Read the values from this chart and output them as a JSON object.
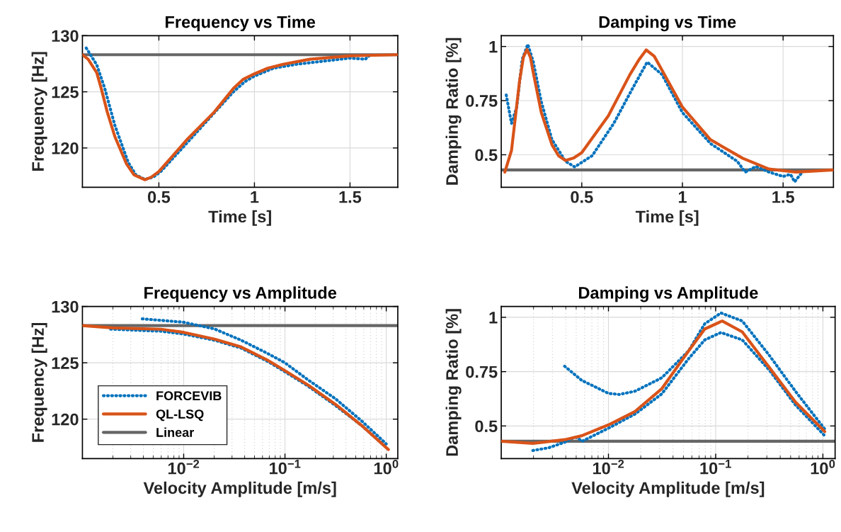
{
  "chart_data": [
    {
      "type": "line",
      "title": "Frequency vs Time",
      "xlabel": "Time [s]",
      "ylabel": "Frequency [Hz]",
      "xlim": [
        0.1,
        1.75
      ],
      "ylim": [
        116.5,
        130
      ],
      "xticks": [
        0.5,
        1,
        1.5
      ],
      "yticks": [
        120,
        125,
        130
      ],
      "grid": true,
      "legend": false,
      "series": [
        {
          "color": "#0072bd",
          "line_style": "dotted",
          "x": [
            0.12,
            0.175,
            0.217,
            0.27,
            0.34,
            0.38,
            0.427,
            0.47,
            0.51,
            0.65,
            0.89,
            0.95,
            1.0,
            1.1,
            1.22,
            1.5,
            1.58,
            1.6
          ],
          "values": [
            128.9,
            127.4,
            125.3,
            122,
            118.7,
            117.6,
            117.2,
            117.4,
            117.9,
            120.5,
            125,
            125.9,
            126.4,
            127.1,
            127.45,
            128.0,
            127.9,
            128.2
          ]
        },
        {
          "color": "#d95319",
          "line_style": "solid",
          "x": [
            0.1,
            0.13,
            0.175,
            0.2,
            0.23,
            0.27,
            0.33,
            0.37,
            0.427,
            0.46,
            0.5,
            0.65,
            0.79,
            0.89,
            0.94,
            1.0,
            1.07,
            1.15,
            1.29,
            1.5,
            1.75
          ],
          "values": [
            128.3,
            127.9,
            126.7,
            125.2,
            123.2,
            121,
            118.6,
            117.6,
            117.17,
            117.4,
            117.9,
            120.8,
            123.2,
            125.3,
            126.1,
            126.6,
            127.1,
            127.45,
            127.9,
            128.2,
            128.3
          ]
        },
        {
          "color": "#666666",
          "line_style": "solid",
          "x": [
            0.1,
            1.75
          ],
          "values": [
            128.3,
            128.3
          ]
        }
      ]
    },
    {
      "type": "line",
      "title": "Damping vs Time",
      "xlabel": "Time [s]",
      "ylabel": "Damping Ratio [%]",
      "xlim": [
        0.1,
        1.75
      ],
      "ylim": [
        0.35,
        1.05
      ],
      "xticks": [
        0.5,
        1,
        1.5
      ],
      "yticks": [
        0.5,
        0.75,
        1
      ],
      "grid": true,
      "legend": false,
      "series": [
        {
          "color": "#0072bd",
          "line_style": "dotted",
          "x": [
            0.125,
            0.151,
            0.177,
            0.204,
            0.232,
            0.259,
            0.299,
            0.352,
            0.419,
            0.465,
            0.552,
            0.659,
            0.752,
            0.825,
            0.899,
            1.0,
            1.139,
            1.272,
            1.312,
            1.365,
            1.43,
            1.5,
            1.537,
            1.557,
            1.592
          ],
          "values": [
            0.776,
            0.645,
            0.72,
            0.94,
            1.01,
            0.93,
            0.745,
            0.57,
            0.47,
            0.444,
            0.496,
            0.645,
            0.806,
            0.928,
            0.87,
            0.695,
            0.552,
            0.47,
            0.42,
            0.446,
            0.42,
            0.4,
            0.41,
            0.375,
            0.416
          ]
        },
        {
          "color": "#d95319",
          "line_style": "solid",
          "x": [
            0.118,
            0.151,
            0.191,
            0.21,
            0.228,
            0.245,
            0.259,
            0.299,
            0.352,
            0.385,
            0.419,
            0.46,
            0.5,
            0.632,
            0.739,
            0.785,
            0.82,
            0.86,
            0.899,
            1.0,
            1.139,
            1.299,
            1.43,
            1.565,
            1.75
          ],
          "values": [
            0.42,
            0.52,
            0.84,
            0.95,
            0.986,
            0.95,
            0.88,
            0.695,
            0.546,
            0.495,
            0.474,
            0.485,
            0.51,
            0.68,
            0.87,
            0.94,
            0.984,
            0.955,
            0.89,
            0.72,
            0.57,
            0.484,
            0.434,
            0.42,
            0.43
          ]
        },
        {
          "color": "#666666",
          "line_style": "solid",
          "x": [
            0.1,
            1.75
          ],
          "values": [
            0.43,
            0.43
          ]
        }
      ]
    },
    {
      "type": "line",
      "title": "Frequency vs Amplitude",
      "xlabel": "Velocity Amplitude [m/s]",
      "ylabel": "Frequency [Hz]",
      "log": "x",
      "xlim": [
        0.001,
        1.3
      ],
      "ylim": [
        116.5,
        130
      ],
      "xticks": [
        {
          "value": 0.01,
          "label": "10$^{−2}$"
        },
        {
          "value": 0.1,
          "label": "10$^{−1}$"
        },
        {
          "value": 1,
          "label": "10$^{0}$"
        }
      ],
      "yticks": [
        120,
        125,
        130
      ],
      "grid": true,
      "legend": "bottom left",
      "series": [
        {
          "name": "FORCEVIB",
          "color": "#0072bd",
          "line_style": "dotted",
          "x": [
            0.0039,
            0.01,
            0.0202,
            0.037,
            0.0683,
            0.1,
            0.171,
            0.316,
            0.578,
            1.0
          ],
          "values": [
            128.9,
            128.6,
            128,
            127,
            125.8,
            125,
            123.45,
            121.8,
            119.8,
            117.8
          ]
        },
        {
          "name": "QL-LSQ",
          "color": "#d95319",
          "line_style": "solid",
          "x": [
            0.001,
            0.002,
            0.00596,
            0.01,
            0.0202,
            0.037,
            0.0683,
            0.1,
            0.171,
            0.316,
            0.578,
            1.05
          ],
          "values": [
            128.3,
            128.1,
            127.98,
            127.7,
            127.1,
            126.4,
            125.2,
            124.3,
            123,
            121.3,
            119.4,
            117.3
          ]
        },
        {
          "name": "Linear",
          "color": "#666666",
          "line_style": "solid",
          "x": [
            0.001,
            1.3
          ],
          "values": [
            128.3,
            128.3
          ]
        },
        {
          "color": "#0072bd",
          "line_style": "dotted",
          "x": [
            0.0019,
            0.00596,
            0.01,
            0.0202,
            0.037,
            0.0683,
            0.1,
            0.171,
            0.316,
            0.578,
            1.0
          ],
          "values": [
            127.98,
            127.8,
            127.55,
            127.0,
            126.3,
            125.1,
            124.2,
            122.9,
            121.2,
            119.4,
            117.5
          ]
        }
      ]
    },
    {
      "type": "line",
      "title": "Damping vs Amplitude",
      "xlabel": "Velocity Amplitude [m/s]",
      "ylabel": "Damping Ratio [%]",
      "log": "x",
      "xlim": [
        0.001,
        1.3
      ],
      "ylim": [
        0.35,
        1.05
      ],
      "xticks": [
        {
          "value": 0.01,
          "label": "10$^{−2}$"
        },
        {
          "value": 0.1,
          "label": "10$^{−1}$"
        },
        {
          "value": 1,
          "label": "10$^{0}$"
        }
      ],
      "yticks": [
        0.5,
        0.75,
        1
      ],
      "grid": true,
      "legend": false,
      "series": [
        {
          "color": "#0072bd",
          "line_style": "dotted",
          "x": [
            0.0039,
            0.00563,
            0.01,
            0.0126,
            0.0177,
            0.0315,
            0.056,
            0.079,
            0.112,
            0.177,
            0.313,
            0.554,
            1.04
          ],
          "values": [
            0.775,
            0.71,
            0.65,
            0.645,
            0.66,
            0.722,
            0.846,
            0.97,
            1.02,
            0.983,
            0.828,
            0.66,
            0.486
          ]
        },
        {
          "color": "#d95319",
          "line_style": "solid",
          "x": [
            0.001,
            0.00197,
            0.0039,
            0.00563,
            0.01,
            0.0177,
            0.0315,
            0.056,
            0.079,
            0.115,
            0.177,
            0.313,
            0.554,
            1.04
          ],
          "values": [
            0.43,
            0.42,
            0.437,
            0.455,
            0.505,
            0.567,
            0.672,
            0.846,
            0.946,
            0.983,
            0.933,
            0.772,
            0.61,
            0.474
          ]
        },
        {
          "color": "#666666",
          "line_style": "solid",
          "x": [
            0.001,
            1.3
          ],
          "values": [
            0.43,
            0.43
          ]
        },
        {
          "color": "#0072bd",
          "line_style": "dotted",
          "x": [
            0.00197,
            0.00278,
            0.0039,
            0.0049,
            0.0057,
            0.01,
            0.0177,
            0.0315,
            0.056,
            0.079,
            0.112,
            0.177,
            0.313,
            0.554,
            1.04
          ],
          "values": [
            0.387,
            0.4,
            0.425,
            0.45,
            0.43,
            0.49,
            0.555,
            0.648,
            0.81,
            0.896,
            0.93,
            0.896,
            0.76,
            0.597,
            0.455
          ]
        }
      ]
    }
  ]
}
